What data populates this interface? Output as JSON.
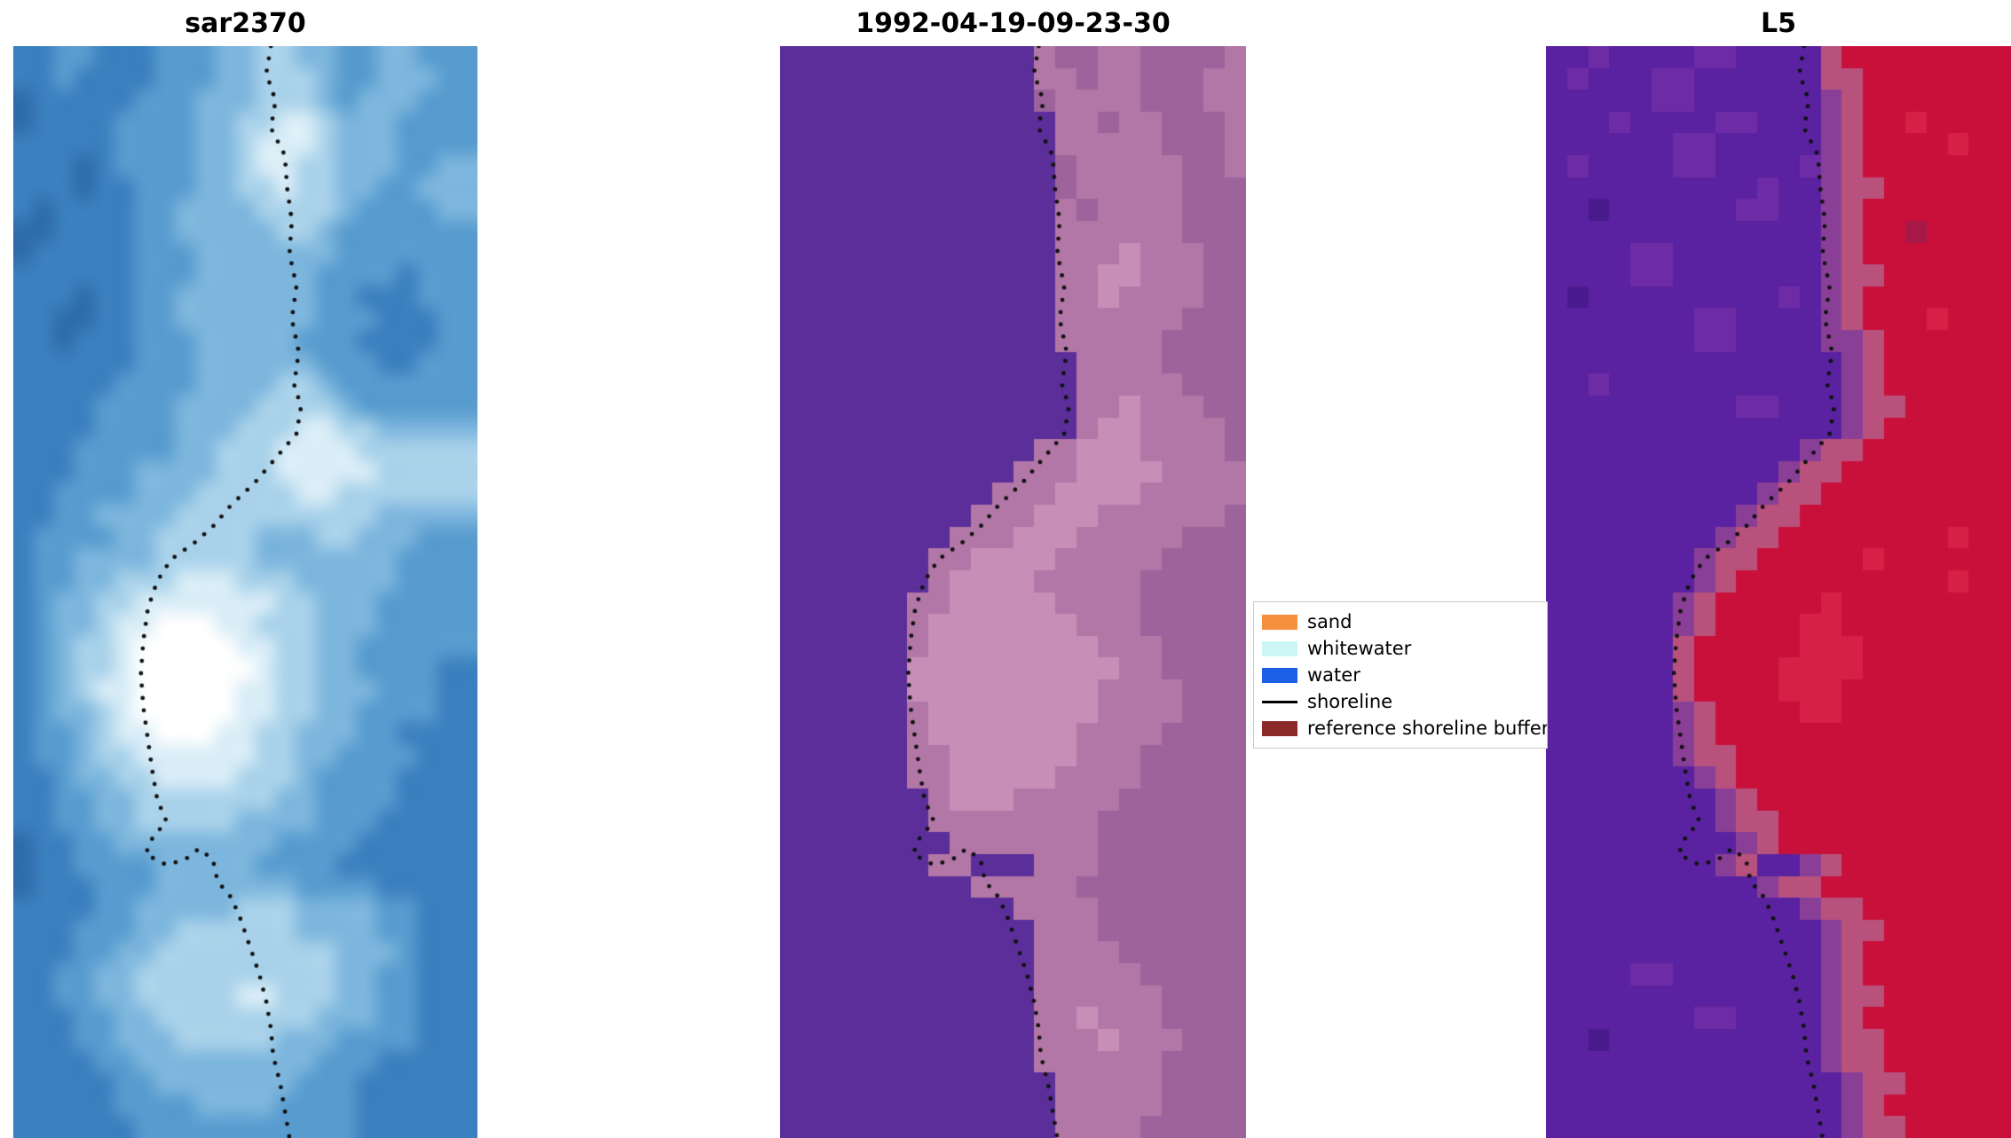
{
  "chart_data": {
    "type": "heatmap",
    "description": "Three co-registered satellite image panels with a dotted detected shoreline overlaid, plus a classification legend",
    "background": "#ffffff",
    "panels": [
      {
        "id": "sar2370",
        "title": "sar2370",
        "render": "smooth",
        "palette": {
          "a": "#2f6cab",
          "b": "#3b80bf",
          "c": "#589ccf",
          "d": "#7db6dd",
          "e": "#a9d2ea",
          "f": "#d9edf7",
          "w": "#ffffff"
        },
        "rows": [
          "bbccbbbcccddeeddccddcc",
          "bbcbbbbcccddeeedccdddc",
          "abbbbbcccdddeeedcdddcc",
          "abbbbccccddeeffedddccc",
          "bbbbbccccddefffedddccc",
          "bbbabccccddeffeedddccd",
          "bbbabbcccddeefeeddccdd",
          "babbbbccddddeeeedccccd",
          "aabbbbccdddddeedcccccc",
          "abbbbbcccdddddddcccccc",
          "bbbbbbcccddddddccccbcc",
          "bbbabbccdddddddccbbbcc",
          "bbaabbccdddddddcccbbbcc",
          "bbabbbcccdddddcccbbbbc",
          "bbbbbbcccddddddcccbbcc",
          "bbbbbccccddddeedcccccc",
          "bbbbccccddddeeeedccccc",
          "bbbbccccdddeeeffeedddd",
          "bbbcccccddeeeffffeeeee",
          "bbbcccddddeeefffffeeee",
          "bbccccdddeeeeeffeeeeee",
          "bbccddddeeeeeeeeeedddd",
          "bccccddeeeeedddeedddcc",
          "bccddddeeeeedddddddccc",
          "bccddeeefffeeedddddccc",
          "bcddeefffffffeedddcccc",
          "bcddeffwwwffeeedddcccc",
          "bcdeefwwwwwffeeddccccc",
          "bcdeefwwwwwwfeeddccccb",
          "bcdeffwwwwwffeedddcccb",
          "bcddefwwwwwffeeddccccb",
          "bccdeffwwwffeedddccbbb",
          "bccdeeffffffeeddccccbb",
          "bbcddeeffffeeedccccbbb",
          "bbccddeeeeeeeddccccbbb",
          "bbccddeeeeeddddcccbbbb",
          "abbccddddddddccccbbbbb",
          "abbccccdddddccccbbbbbb",
          "abbbcccdddddddccccbbbb",
          "bbbbccdddddeeeddddccbbb",
          "bbbcccddeeeeeeddddccbb",
          "bbbccddeeeeeeeeedddcbb",
          "bbccddeeeeeeeeeeddccbb",
          "bbccddeeeeeffeeeddccbb",
          "bbbccddeeeeeeeedddccbb",
          "bbbccdddeeeeedddccccbb",
          "bbbbccdddddddddcccbbbb",
          "bbbbbccdddddddcccbbbbb",
          "bbbbbccccddddccccbbbbb",
          "bbbbbbcccccccccccbbbbb"
        ]
      },
      {
        "id": "classified",
        "title": "1992-04-19-09-23-30",
        "render": "blocky",
        "palette": {
          "p": "#5b2e99",
          "m": "#9d639b",
          "n": "#b277a7",
          "o": "#c78fb7"
        },
        "rows": [
          "ppppppppppppnmmnnmmmmn",
          "ppppppppppppnnmnnmmmnn",
          "ppppppppppppmnnnnmmmnn",
          "pppppppppppppnnmnnmmmn",
          "pppppppppppppnnnnnmmmn",
          "pppppppppppppmnnnnnmmn",
          "pppppppppppppmnnnnnmmm",
          "pppppppppppppnmnnnnmmm",
          "pppppppppppppnnnnnnmmm",
          "pppppppppppppnnnonnnmm",
          "pppppppppppppnnoonnnmm",
          "pppppppppppppnnonnnnmm",
          "pppppppppppppnnnnnnmmm",
          "pppppppppppppnnnnnmmmm",
          "ppppppppppppppnnnnmmmm",
          "ppppppppppppppnnnnnmmm",
          "ppppppppppppppnnonnnmm",
          "ppppppppppppppnoonnnnm",
          "ppppppppppppnnooonnnnm",
          "pppppppppppnnnoooonnnn",
          "ppppppppppnnnoooonnnnn",
          "pppppppppnnnooonnnnnnm",
          "ppppppppnnnooonnnnnmmm",
          "pppppppnnoooonnnnnmmmm",
          "pppppppnoooonnnnnmmmmm",
          "ppppppnnooooonnnnmmmmm",
          "ppppppnooooooonnnmmmmm",
          "ppppppnoooooooonnnmmmm",
          "ppppppoooooooooonnmmmm",
          "ppppppooooooooonnnnmmm",
          "ppppppnoooooooonnnnmmm",
          "ppppppnooooooonnnnmmmm",
          "ppppppnnoooooonnnmmmmm",
          "ppppppnnooooonnnnmmmmm",
          "pppppppnooonnnnnmmmmmm",
          "pppppppnnnnnnnnmmmmmmm",
          "ppppppppnnnnnnnmmmmmmm",
          "pppppppnnpppnnnmmmmmmm",
          "pppppppppnnnnnmmmmmmmm",
          "pppppppppppnnnnmmmmmmm",
          "ppppppppppppnnnmmmmmmm",
          "ppppppppppppnnnnmmmmmm",
          "ppppppppppppnnnnnmmmmm",
          "ppppppppppppnnnnnnmmmm",
          "ppppppppppppnnonnnmmmm",
          "ppppppppppppnnnonnnmmm",
          "ppppppppppppnnnnnnmmmm",
          "pppppppppppppnnnnnmmmm",
          "pppppppppppppnnnnnmmmm",
          "pppppppppppppnnnnmmmmm"
        ]
      },
      {
        "id": "l5",
        "title": "L5",
        "render": "blocky",
        "palette": {
          "s": "#4a1b8e",
          "u": "#5a22a0",
          "t": "#6e2ba6",
          "v": "#8a3f97",
          "q": "#b8527d",
          "r": "#c9103a",
          "R": "#d62045",
          "x": "#a81846"
        },
        "rows": [
          "uutuuuuttuuuuqrrrrrrrr",
          "utuuuttuuuuuuqqrrrrrrr",
          "uuuuuttuuuuuuvqrrrrrrr",
          "uuutuuuuttuuuvqrrRrrrr",
          "uuuuuuttuuuuuvqrrrrRrr",
          "utuuuuttuuuutvqrrrrrrr",
          "uuuuuuuuuutuuvqqrrrrrr",
          "uusuuuuuuttuuvqrrrrrrr",
          "uuuuuuuuuuuuuvqrrxrrrr",
          "uuuuttuuuuuuuvqrrrrrrr",
          "uuuuttuuuuuuuvqqrrrrrr",
          "usuuuuuuuuutuvqrrrrrrr",
          "uuuuuuuttuuuuvqrrrRrrr",
          "uuuuuuuttuuuuvvqrrrrrr",
          "uuuuuuuuuuuuuuvqrrrrrr",
          "uutuuuuuuuuuuuvqrrrrrr",
          "uuuuuuuuuttuuuvqqrrrrr",
          "uuuuuuuuuuuuuuvqrrrrrr",
          "uuuuuuuuuuuuvqqrrrrrrr",
          "uuuuuuuuuuuvqqrrrrrrrr",
          "uuuuuuuuuuvqqrrrrrrrrr",
          "uuuuuuuuuvqqrrrrrrrrrr",
          "uuuuuuuuvqqrrrrrrrrRrr",
          "uuuuuuuvqqrrrrrRrrrrrr",
          "uuuuuuuvqrrrrrrrrrrRrr",
          "uuuuuuvqrrrrrRrrrrrrrr",
          "uuuuuuvqrrrrRRrrrrrrrr",
          "uuuuuuqrrrrrRRRrrrrrrr",
          "uuuuuuqrrrrRRRRrrrrrrr",
          "uuuuuuqrrrrRRRrrrrrrrr",
          "uuuuuuvqrrrrRRrrrrrrrr",
          "uuuuuuvqrrrrrrrrrrrrrr",
          "uuuuuuvqqrrrrrrrrrrrrr",
          "uuuuuuuvqrrrrrrrrrrrrr",
          "uuuuuuuuvqrrrrrrrrrrrr",
          "uuuuuuuuvqqrrrrrrrrrrr",
          "uuuuuuuuuvqrrrrrrrrrrr",
          "uuuuuuuuvquuvqrrrrrrrr",
          "uuuuuuuuuuvqqrrrrrrrrr",
          "uuuuuuuuuuuuvqqrrrrrrr",
          "uuuuuuuuuuuuuvqqrrrrrr",
          "uuuuuuuuuuuuuvqrrrrrrr",
          "uuuuttuuuuuuuvqrrrrrrr",
          "uuuuuuuuuuuuuvqqrrrrrr",
          "uuuuuuuttuuuuvqrrrrrrr",
          "uusuuuuuuuuuuvqqrrrrrr",
          "uuuuuuuuuuuuuvqqrrrrrr",
          "uuuuuuuuuuuuuuvqqrrrrr",
          "uuuuuuuuuuuuuuvqrrrrrr",
          "uuuuuuuuuuuuuuvqqrrrrr"
        ]
      }
    ],
    "shoreline": {
      "color": "#111111",
      "dot_radius": 2.4,
      "dot_spacing": 14,
      "points": [
        [
          0.555,
          0.0
        ],
        [
          0.545,
          0.025
        ],
        [
          0.565,
          0.05
        ],
        [
          0.555,
          0.075
        ],
        [
          0.585,
          0.1
        ],
        [
          0.59,
          0.13
        ],
        [
          0.6,
          0.16
        ],
        [
          0.595,
          0.19
        ],
        [
          0.61,
          0.22
        ],
        [
          0.6,
          0.25
        ],
        [
          0.615,
          0.28
        ],
        [
          0.605,
          0.31
        ],
        [
          0.62,
          0.33
        ],
        [
          0.61,
          0.355
        ],
        [
          0.56,
          0.38
        ],
        [
          0.52,
          0.4
        ],
        [
          0.47,
          0.42
        ],
        [
          0.43,
          0.44
        ],
        [
          0.39,
          0.455
        ],
        [
          0.34,
          0.47
        ],
        [
          0.31,
          0.49
        ],
        [
          0.29,
          0.515
        ],
        [
          0.28,
          0.545
        ],
        [
          0.275,
          0.575
        ],
        [
          0.28,
          0.605
        ],
        [
          0.29,
          0.635
        ],
        [
          0.3,
          0.665
        ],
        [
          0.31,
          0.69
        ],
        [
          0.33,
          0.71
        ],
        [
          0.3,
          0.725
        ],
        [
          0.285,
          0.74
        ],
        [
          0.33,
          0.75
        ],
        [
          0.37,
          0.745
        ],
        [
          0.4,
          0.735
        ],
        [
          0.43,
          0.745
        ],
        [
          0.44,
          0.765
        ],
        [
          0.47,
          0.78
        ],
        [
          0.49,
          0.8
        ],
        [
          0.51,
          0.825
        ],
        [
          0.53,
          0.85
        ],
        [
          0.545,
          0.875
        ],
        [
          0.555,
          0.9
        ],
        [
          0.56,
          0.925
        ],
        [
          0.575,
          0.95
        ],
        [
          0.585,
          0.975
        ],
        [
          0.595,
          1.0
        ]
      ]
    },
    "legend": {
      "border_color": "#c9c9c9",
      "items": [
        {
          "label": "sand",
          "type": "patch",
          "color": "#f5913e"
        },
        {
          "label": "whitewater",
          "type": "patch",
          "color": "#ccf6f6"
        },
        {
          "label": "water",
          "type": "patch",
          "color": "#1a5fe4"
        },
        {
          "label": "shoreline",
          "type": "line",
          "color": "#000000"
        },
        {
          "label": "reference shoreline buffer",
          "type": "patch",
          "color": "#8b2a28"
        }
      ]
    }
  }
}
